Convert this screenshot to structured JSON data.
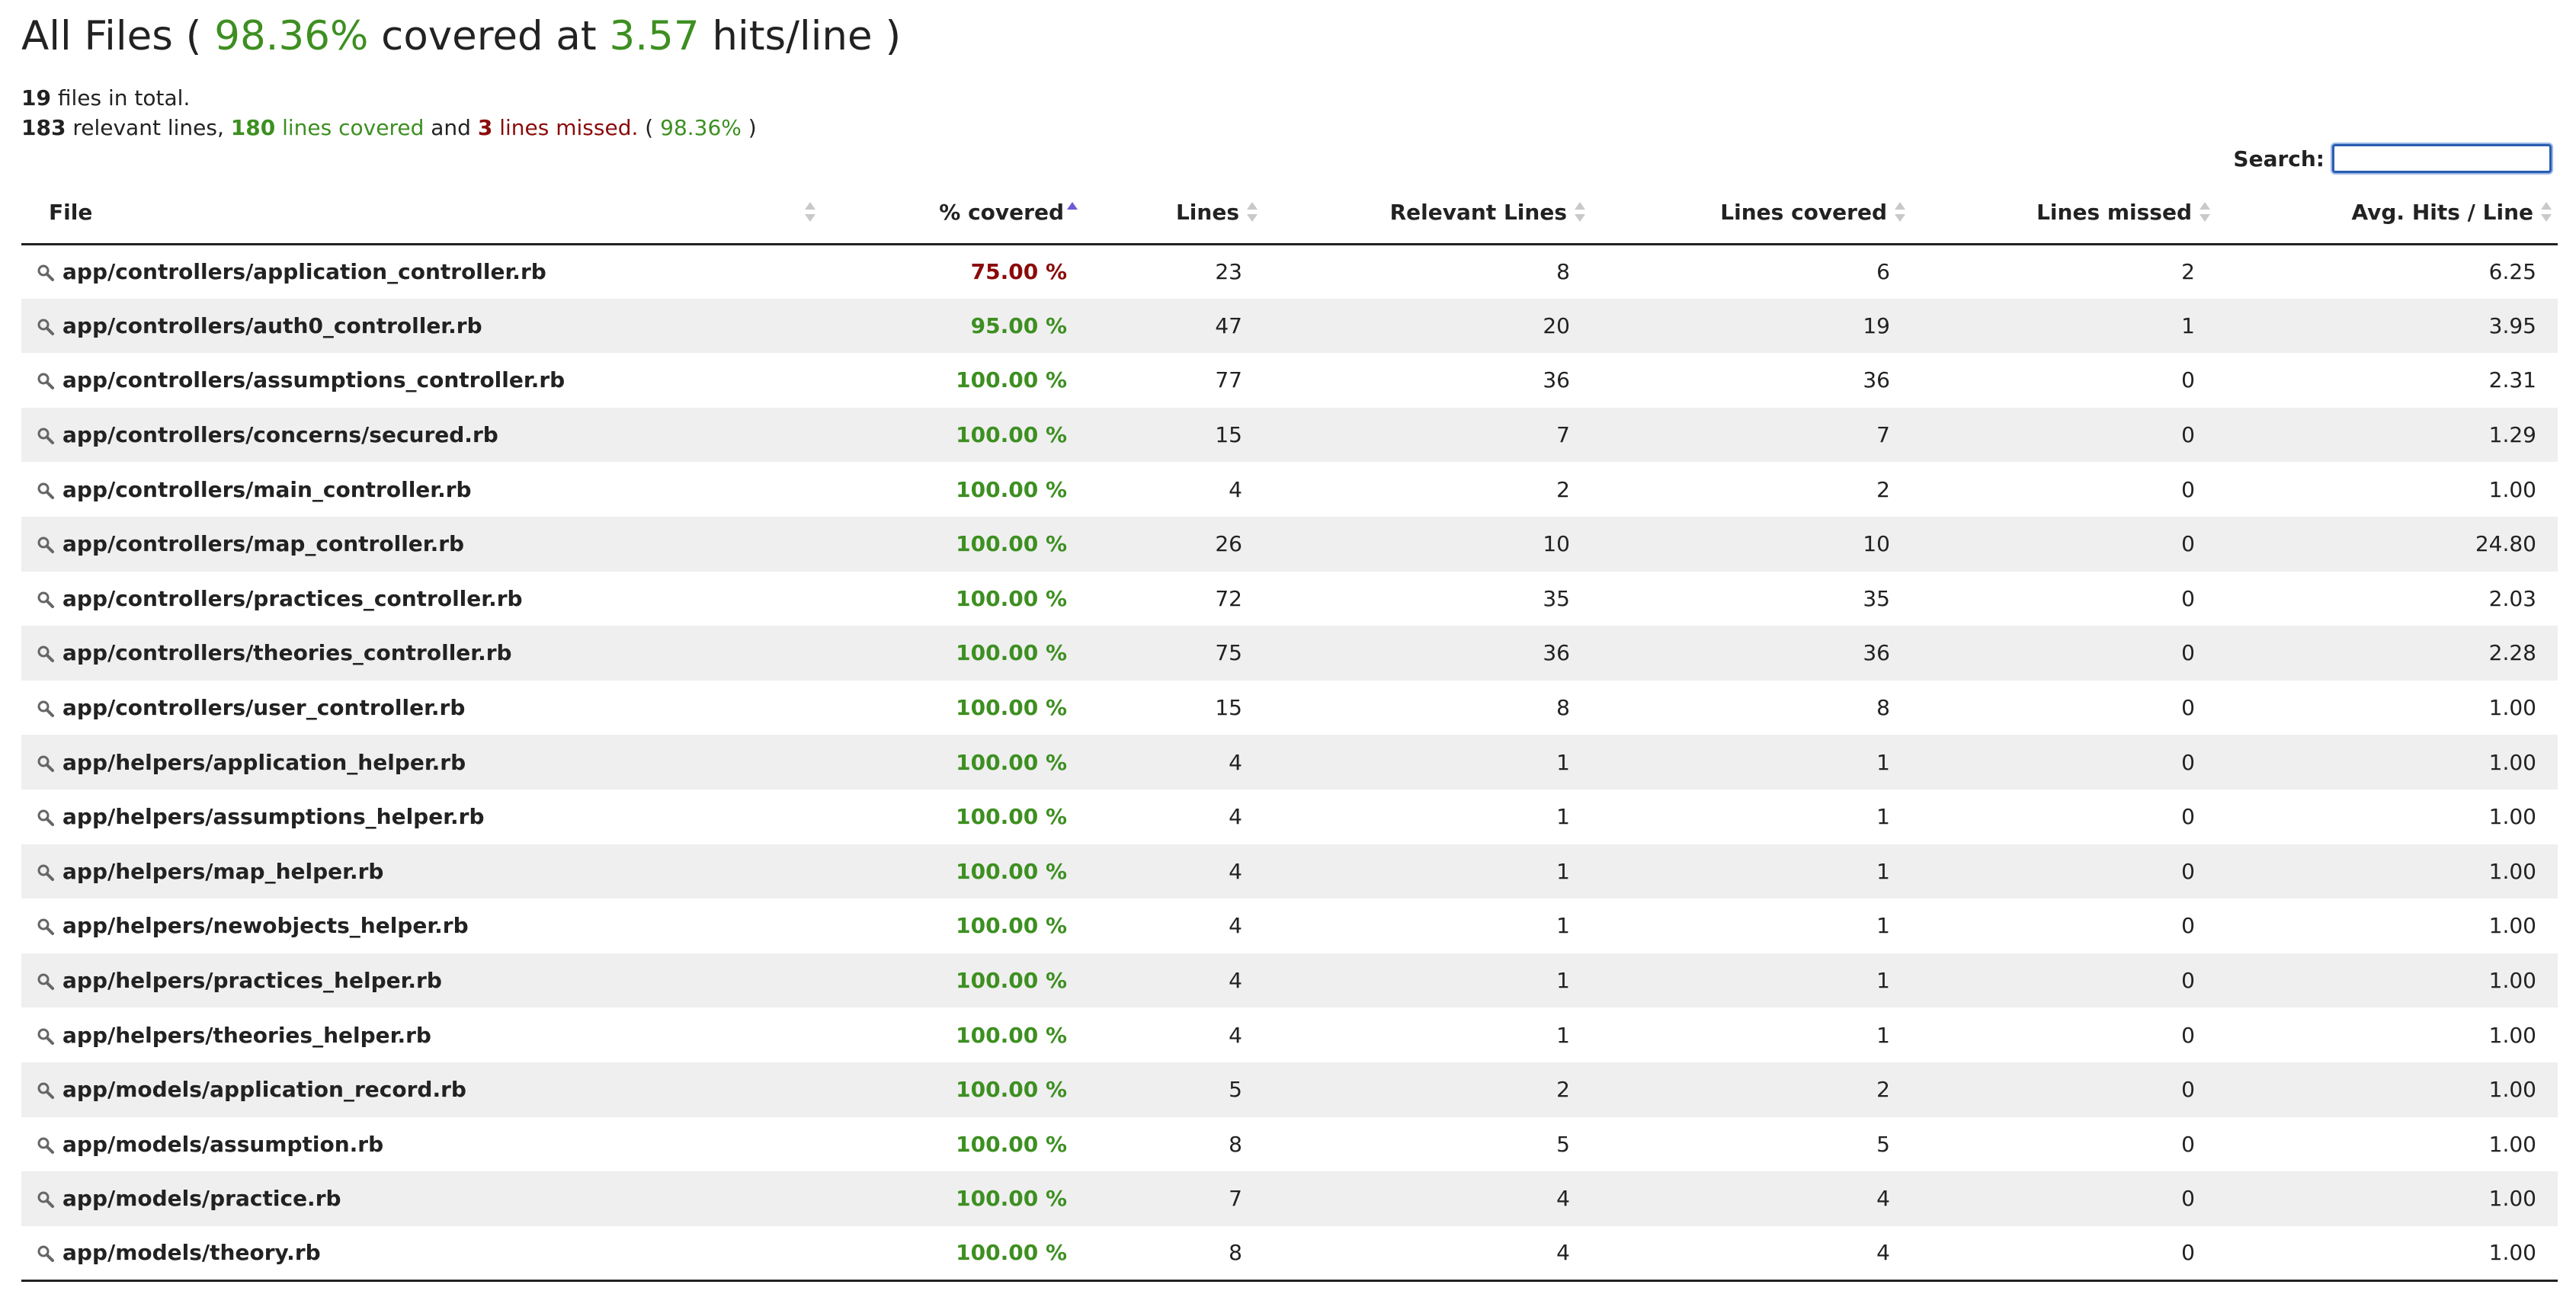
{
  "header": {
    "title_prefix": "All Files ( ",
    "covered_percent": "98.36%",
    "title_mid": " covered at ",
    "hits_per_line": "3.57",
    "title_suffix": " hits/line )"
  },
  "summary": {
    "file_count": "19",
    "files_text": " files in total.",
    "relevant_lines": "183",
    "relevant_text": " relevant lines, ",
    "lines_covered": "180",
    "covered_text": " lines covered",
    "and_text": " and ",
    "lines_missed": "3",
    "missed_text": " lines missed.",
    "paren_open": " ( ",
    "percent": "98.36%",
    "paren_close": " )"
  },
  "search": {
    "label": "Search:",
    "value": ""
  },
  "table": {
    "columns": [
      {
        "label": "File",
        "sort": "none"
      },
      {
        "label": "% covered",
        "sort": "ascending"
      },
      {
        "label": "Lines",
        "sort": "none"
      },
      {
        "label": "Relevant Lines",
        "sort": "none"
      },
      {
        "label": "Lines covered",
        "sort": "none"
      },
      {
        "label": "Lines missed",
        "sort": "none"
      },
      {
        "label": "Avg. Hits / Line",
        "sort": "none"
      }
    ],
    "rows": [
      {
        "file": "app/controllers/application_controller.rb",
        "covered": "75.00 %",
        "status": "bad",
        "lines": "23",
        "relevant": "8",
        "hit": "6",
        "missed": "2",
        "avg": "6.25"
      },
      {
        "file": "app/controllers/auth0_controller.rb",
        "covered": "95.00 %",
        "status": "ok",
        "lines": "47",
        "relevant": "20",
        "hit": "19",
        "missed": "1",
        "avg": "3.95"
      },
      {
        "file": "app/controllers/assumptions_controller.rb",
        "covered": "100.00 %",
        "status": "ok",
        "lines": "77",
        "relevant": "36",
        "hit": "36",
        "missed": "0",
        "avg": "2.31"
      },
      {
        "file": "app/controllers/concerns/secured.rb",
        "covered": "100.00 %",
        "status": "ok",
        "lines": "15",
        "relevant": "7",
        "hit": "7",
        "missed": "0",
        "avg": "1.29"
      },
      {
        "file": "app/controllers/main_controller.rb",
        "covered": "100.00 %",
        "status": "ok",
        "lines": "4",
        "relevant": "2",
        "hit": "2",
        "missed": "0",
        "avg": "1.00"
      },
      {
        "file": "app/controllers/map_controller.rb",
        "covered": "100.00 %",
        "status": "ok",
        "lines": "26",
        "relevant": "10",
        "hit": "10",
        "missed": "0",
        "avg": "24.80"
      },
      {
        "file": "app/controllers/practices_controller.rb",
        "covered": "100.00 %",
        "status": "ok",
        "lines": "72",
        "relevant": "35",
        "hit": "35",
        "missed": "0",
        "avg": "2.03"
      },
      {
        "file": "app/controllers/theories_controller.rb",
        "covered": "100.00 %",
        "status": "ok",
        "lines": "75",
        "relevant": "36",
        "hit": "36",
        "missed": "0",
        "avg": "2.28"
      },
      {
        "file": "app/controllers/user_controller.rb",
        "covered": "100.00 %",
        "status": "ok",
        "lines": "15",
        "relevant": "8",
        "hit": "8",
        "missed": "0",
        "avg": "1.00"
      },
      {
        "file": "app/helpers/application_helper.rb",
        "covered": "100.00 %",
        "status": "ok",
        "lines": "4",
        "relevant": "1",
        "hit": "1",
        "missed": "0",
        "avg": "1.00"
      },
      {
        "file": "app/helpers/assumptions_helper.rb",
        "covered": "100.00 %",
        "status": "ok",
        "lines": "4",
        "relevant": "1",
        "hit": "1",
        "missed": "0",
        "avg": "1.00"
      },
      {
        "file": "app/helpers/map_helper.rb",
        "covered": "100.00 %",
        "status": "ok",
        "lines": "4",
        "relevant": "1",
        "hit": "1",
        "missed": "0",
        "avg": "1.00"
      },
      {
        "file": "app/helpers/newobjects_helper.rb",
        "covered": "100.00 %",
        "status": "ok",
        "lines": "4",
        "relevant": "1",
        "hit": "1",
        "missed": "0",
        "avg": "1.00"
      },
      {
        "file": "app/helpers/practices_helper.rb",
        "covered": "100.00 %",
        "status": "ok",
        "lines": "4",
        "relevant": "1",
        "hit": "1",
        "missed": "0",
        "avg": "1.00"
      },
      {
        "file": "app/helpers/theories_helper.rb",
        "covered": "100.00 %",
        "status": "ok",
        "lines": "4",
        "relevant": "1",
        "hit": "1",
        "missed": "0",
        "avg": "1.00"
      },
      {
        "file": "app/models/application_record.rb",
        "covered": "100.00 %",
        "status": "ok",
        "lines": "5",
        "relevant": "2",
        "hit": "2",
        "missed": "0",
        "avg": "1.00"
      },
      {
        "file": "app/models/assumption.rb",
        "covered": "100.00 %",
        "status": "ok",
        "lines": "8",
        "relevant": "5",
        "hit": "5",
        "missed": "0",
        "avg": "1.00"
      },
      {
        "file": "app/models/practice.rb",
        "covered": "100.00 %",
        "status": "ok",
        "lines": "7",
        "relevant": "4",
        "hit": "4",
        "missed": "0",
        "avg": "1.00"
      },
      {
        "file": "app/models/theory.rb",
        "covered": "100.00 %",
        "status": "ok",
        "lines": "8",
        "relevant": "4",
        "hit": "4",
        "missed": "0",
        "avg": "1.00"
      }
    ]
  },
  "colors": {
    "good": "#3d8f21",
    "bad": "#8b0a0a",
    "sort_active": "#6b5bd4",
    "row_alt": "#efefef"
  },
  "icons": {
    "row_icon": "magnifier-icon",
    "sort_icon": "sort-arrows-icon"
  }
}
